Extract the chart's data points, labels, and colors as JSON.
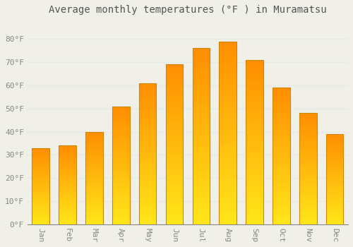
{
  "title": "Average monthly temperatures (°F ) in Muramatsu",
  "months": [
    "Jan",
    "Feb",
    "Mar",
    "Apr",
    "May",
    "Jun",
    "Jul",
    "Aug",
    "Sep",
    "Oct",
    "Nov",
    "Dec"
  ],
  "values": [
    33,
    34,
    40,
    51,
    61,
    69,
    76,
    79,
    71,
    59,
    48,
    39
  ],
  "ylim": [
    0,
    88
  ],
  "yticks": [
    0,
    10,
    20,
    30,
    40,
    50,
    60,
    70,
    80
  ],
  "ytick_labels": [
    "0°F",
    "10°F",
    "20°F",
    "30°F",
    "40°F",
    "50°F",
    "60°F",
    "70°F",
    "80°F"
  ],
  "bar_color_main": "#FFA500",
  "bar_color_light": "#FFD050",
  "bar_edge_color": "#CC8800",
  "background_color": "#f0f0e8",
  "grid_color": "#e8e8e8",
  "title_fontsize": 10,
  "tick_fontsize": 8,
  "tick_color": "#888888",
  "figsize": [
    5.0,
    3.5
  ],
  "dpi": 100
}
